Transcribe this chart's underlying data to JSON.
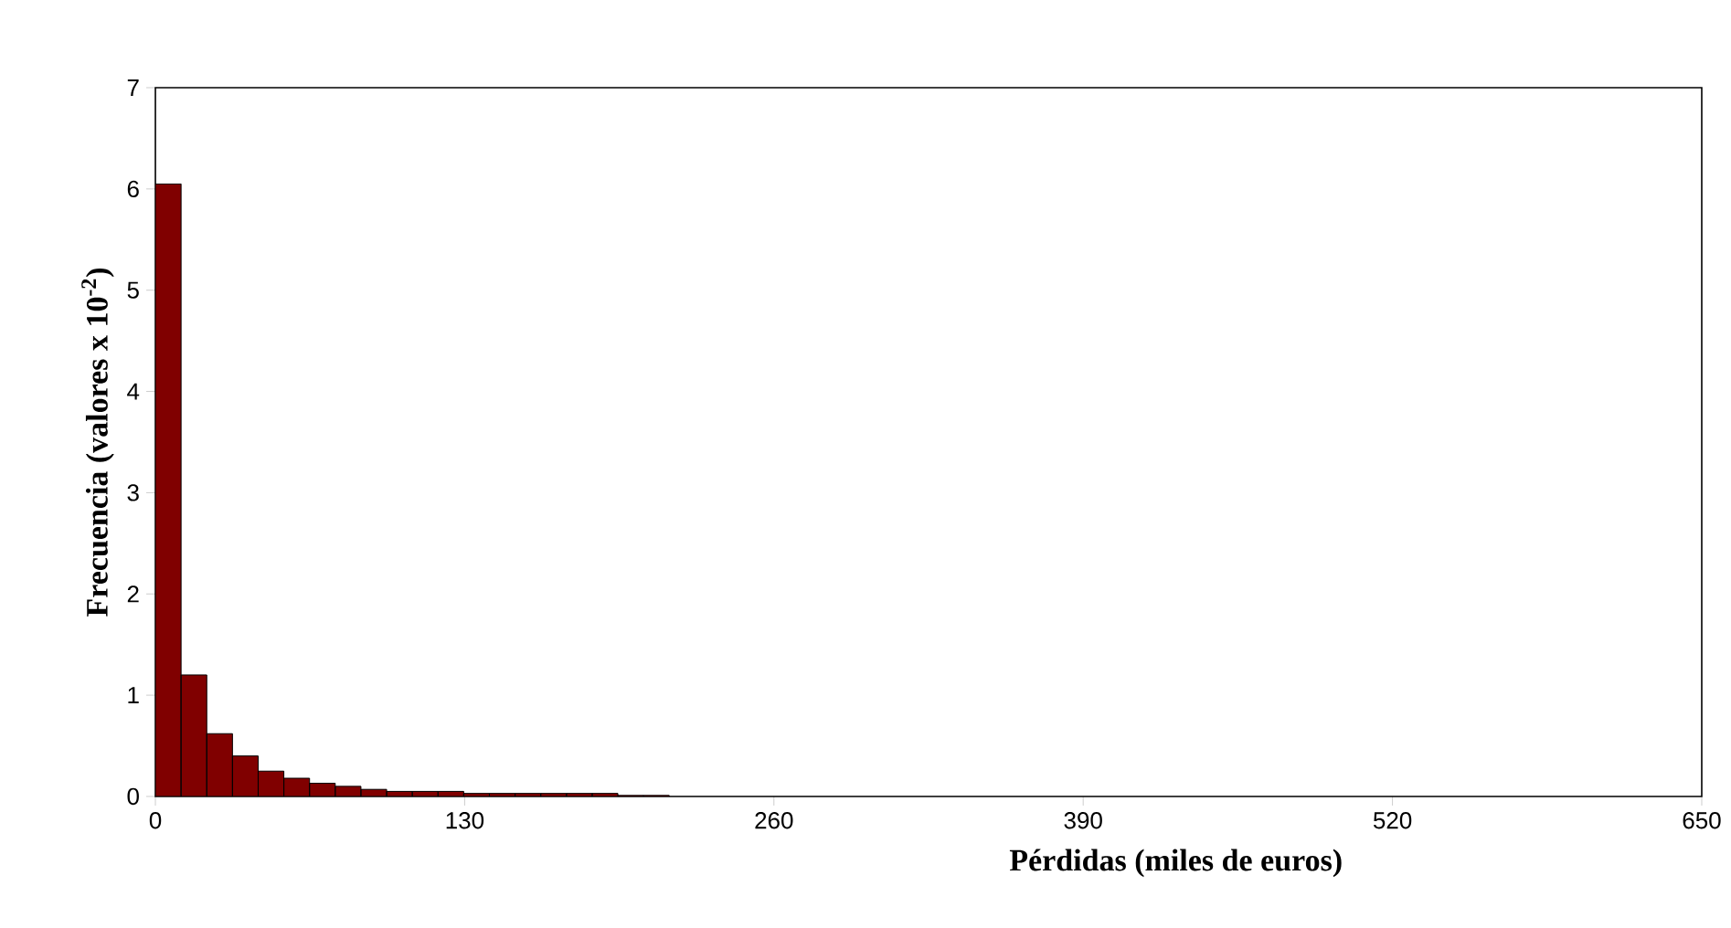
{
  "chart_data": {
    "type": "histogram",
    "xlabel": "Pérdidas (miles de euros)",
    "ylabel": "Frecuencia (valores  x 10$^{-2}$)",
    "bins": [
      0,
      10.8,
      21.6,
      32.4,
      43.2,
      54,
      64.8,
      75.6,
      86.4,
      97.2,
      108,
      118.8,
      129.6,
      140.4,
      151.2,
      162,
      172.8,
      183.6,
      194.4,
      205.2,
      216
    ],
    "values": [
      6.05,
      1.2,
      0.62,
      0.4,
      0.25,
      0.18,
      0.13,
      0.1,
      0.07,
      0.05,
      0.05,
      0.05,
      0.03,
      0.03,
      0.03,
      0.03,
      0.03,
      0.03,
      0.01,
      0.01
    ],
    "color": "#800000",
    "xlim": [
      0,
      650
    ],
    "xticks": [
      0,
      130,
      260,
      390,
      520,
      650
    ],
    "ylim": [
      0,
      7
    ],
    "yticks": [
      0,
      1,
      2,
      3,
      4,
      5,
      6,
      7
    ],
    "grid": false
  }
}
